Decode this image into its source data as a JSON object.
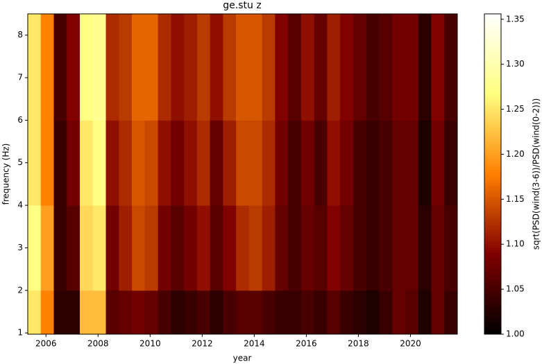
{
  "chart_data": {
    "type": "heatmap",
    "title": "ge.stu z",
    "x_label": "year",
    "y_label": "frequency (Hz)",
    "colorbar_label": "sqrt(PSD(wind(3-6))/PSD(wind(0-2)))",
    "colormap": "afmhot",
    "xlim": [
      2005.3,
      2021.8
    ],
    "ylim": [
      0.97,
      8.5
    ],
    "clim": [
      1.0,
      1.356
    ],
    "xticks": [
      2006,
      2008,
      2010,
      2012,
      2014,
      2016,
      2018,
      2020
    ],
    "yticks": [
      1,
      2,
      3,
      4,
      5,
      6,
      7,
      8
    ],
    "cticks": [
      {
        "value": 1.0,
        "label": "1.00"
      },
      {
        "value": 1.05,
        "label": "1.05"
      },
      {
        "value": 1.1,
        "label": "1.10"
      },
      {
        "value": 1.15,
        "label": "1.15"
      },
      {
        "value": 1.2,
        "label": "1.20"
      },
      {
        "value": 1.25,
        "label": "1.25"
      },
      {
        "value": 1.3,
        "label": "1.30"
      },
      {
        "value": 1.35,
        "label": "1.35"
      }
    ],
    "x_edges": [
      2005.3,
      2005.8,
      2006.3,
      2006.8,
      2007.3,
      2007.8,
      2008.3,
      2008.8,
      2009.3,
      2009.8,
      2010.3,
      2010.8,
      2011.3,
      2011.8,
      2012.3,
      2012.8,
      2013.3,
      2013.8,
      2014.3,
      2014.8,
      2015.3,
      2015.8,
      2016.3,
      2016.8,
      2017.3,
      2017.8,
      2018.3,
      2018.8,
      2019.3,
      2019.8,
      2020.3,
      2020.8,
      2021.3,
      2021.8
    ],
    "y_edges": [
      0.97,
      2,
      4,
      6,
      8.5
    ],
    "z": [
      [
        1.25,
        1.27,
        1.25,
        1.25
      ],
      [
        1.18,
        1.2,
        1.18,
        1.18
      ],
      [
        1.03,
        1.04,
        1.04,
        1.05
      ],
      [
        1.03,
        1.06,
        1.08,
        1.09
      ],
      [
        1.22,
        1.24,
        1.25,
        1.27
      ],
      [
        1.22,
        1.25,
        1.27,
        1.28
      ],
      [
        1.06,
        1.08,
        1.1,
        1.12
      ],
      [
        1.07,
        1.11,
        1.12,
        1.13
      ],
      [
        1.08,
        1.14,
        1.15,
        1.16
      ],
      [
        1.07,
        1.13,
        1.14,
        1.16
      ],
      [
        1.05,
        1.08,
        1.1,
        1.12
      ],
      [
        1.03,
        1.06,
        1.08,
        1.1
      ],
      [
        1.04,
        1.08,
        1.1,
        1.11
      ],
      [
        1.05,
        1.1,
        1.12,
        1.13
      ],
      [
        1.03,
        1.06,
        1.07,
        1.1
      ],
      [
        1.05,
        1.09,
        1.11,
        1.13
      ],
      [
        1.06,
        1.12,
        1.14,
        1.15
      ],
      [
        1.06,
        1.13,
        1.14,
        1.15
      ],
      [
        1.05,
        1.11,
        1.12,
        1.13
      ],
      [
        1.04,
        1.07,
        1.08,
        1.09
      ],
      [
        1.04,
        1.05,
        1.05,
        1.06
      ],
      [
        1.05,
        1.07,
        1.08,
        1.1
      ],
      [
        1.04,
        1.06,
        1.05,
        1.07
      ],
      [
        1.06,
        1.09,
        1.1,
        1.11
      ],
      [
        1.04,
        1.07,
        1.08,
        1.09
      ],
      [
        1.03,
        1.05,
        1.05,
        1.07
      ],
      [
        1.02,
        1.04,
        1.04,
        1.05
      ],
      [
        1.04,
        1.05,
        1.05,
        1.06
      ],
      [
        1.07,
        1.07,
        1.07,
        1.08
      ],
      [
        1.06,
        1.07,
        1.07,
        1.08
      ],
      [
        1.02,
        1.03,
        1.02,
        1.03
      ],
      [
        1.07,
        1.07,
        1.08,
        1.09
      ],
      [
        1.04,
        1.05,
        1.04,
        1.05
      ]
    ]
  }
}
